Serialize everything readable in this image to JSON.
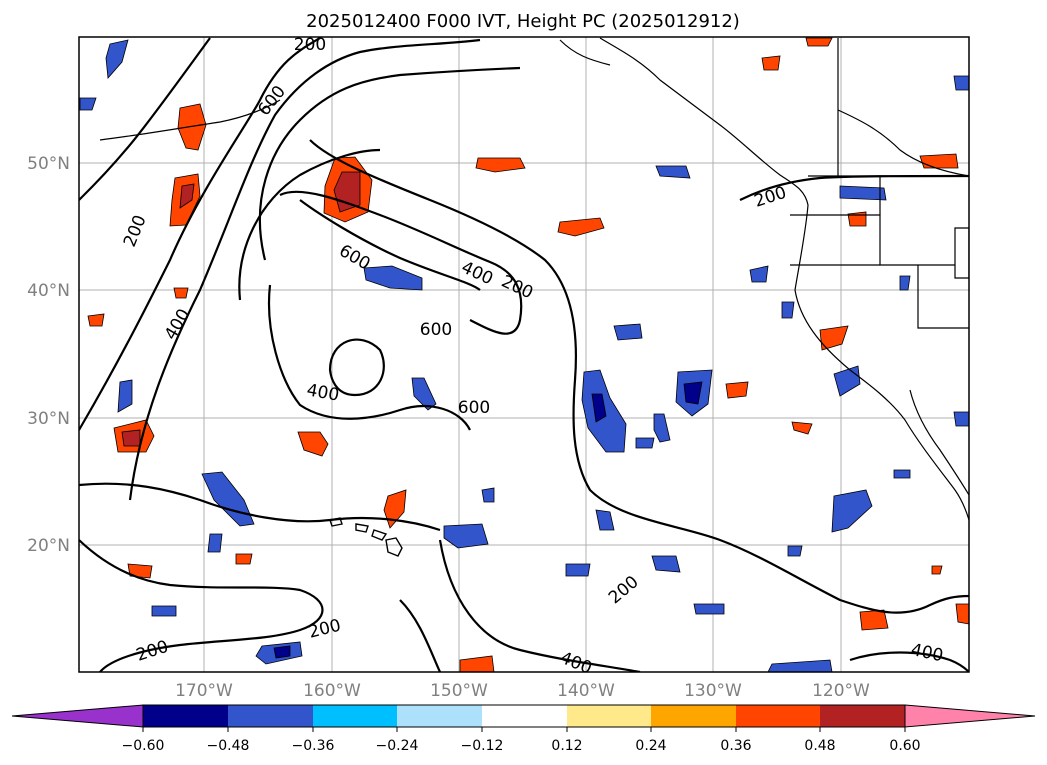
{
  "title": "2025012400 F000 IVT, Height PC (2025012912)",
  "lat_labels": [
    "50°N",
    "40°N",
    "30°N",
    "20°N"
  ],
  "lon_labels": [
    "170°W",
    "160°W",
    "150°W",
    "140°W",
    "130°W",
    "120°W"
  ],
  "colorbar": {
    "ticks": [
      "−0.60",
      "−0.48",
      "−0.36",
      "−0.24",
      "−0.12",
      "0.12",
      "0.24",
      "0.36",
      "0.48",
      "0.60"
    ],
    "colors": [
      "#9932CC",
      "#00008B",
      "#3355CC",
      "#00BFFF",
      "#ADE0FA",
      "#FFFFFF",
      "#FFE98A",
      "#FFA500",
      "#FF4500",
      "#B22222",
      "#FF82AB"
    ]
  },
  "contour_labels": [
    "200",
    "200",
    "600",
    "200",
    "200",
    "400",
    "600",
    "400",
    "200",
    "600",
    "400",
    "600",
    "200",
    "200",
    "400",
    "400"
  ]
}
